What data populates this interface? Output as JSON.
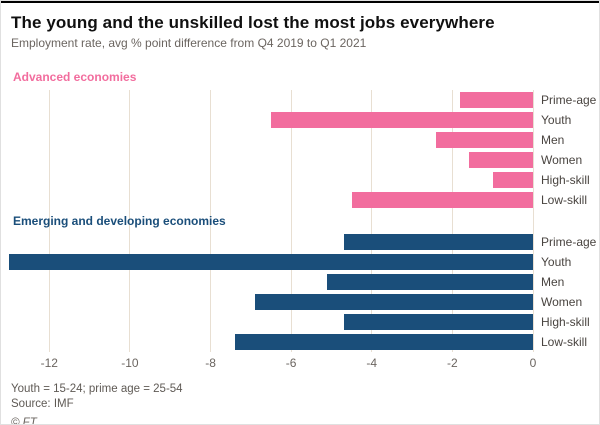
{
  "header": {
    "title": "The young and the unskilled lost the most jobs everywhere",
    "subtitle": "Employment rate, avg % point difference from Q4 2019 to Q1 2021"
  },
  "chart_data": {
    "type": "bar",
    "orientation": "horizontal",
    "title": "The young and the unskilled lost the most jobs everywhere",
    "subtitle": "Employment rate, avg % point difference from Q4 2019 to Q1 2021",
    "categories": [
      "Prime-age",
      "Youth",
      "Men",
      "Women",
      "High-skill",
      "Low-skill"
    ],
    "series": [
      {
        "name": "Advanced economies",
        "color": "#f26d9e",
        "values": [
          -1.8,
          -6.5,
          -2.4,
          -1.6,
          -1.0,
          -4.5
        ]
      },
      {
        "name": "Emerging and developing economies",
        "color": "#1a4e7a",
        "values": [
          -4.7,
          -13.0,
          -5.1,
          -6.9,
          -4.7,
          -7.4
        ]
      }
    ],
    "xlim": [
      -13,
      0
    ],
    "xticks": [
      -12,
      -10,
      -8,
      -6,
      -4,
      -2,
      0
    ],
    "grid": true,
    "gridline_color": "#e8dfd2"
  },
  "footer": {
    "note": "Youth = 15-24; prime age = 25-54",
    "source": "Source: IMF",
    "credit": "© FT"
  }
}
